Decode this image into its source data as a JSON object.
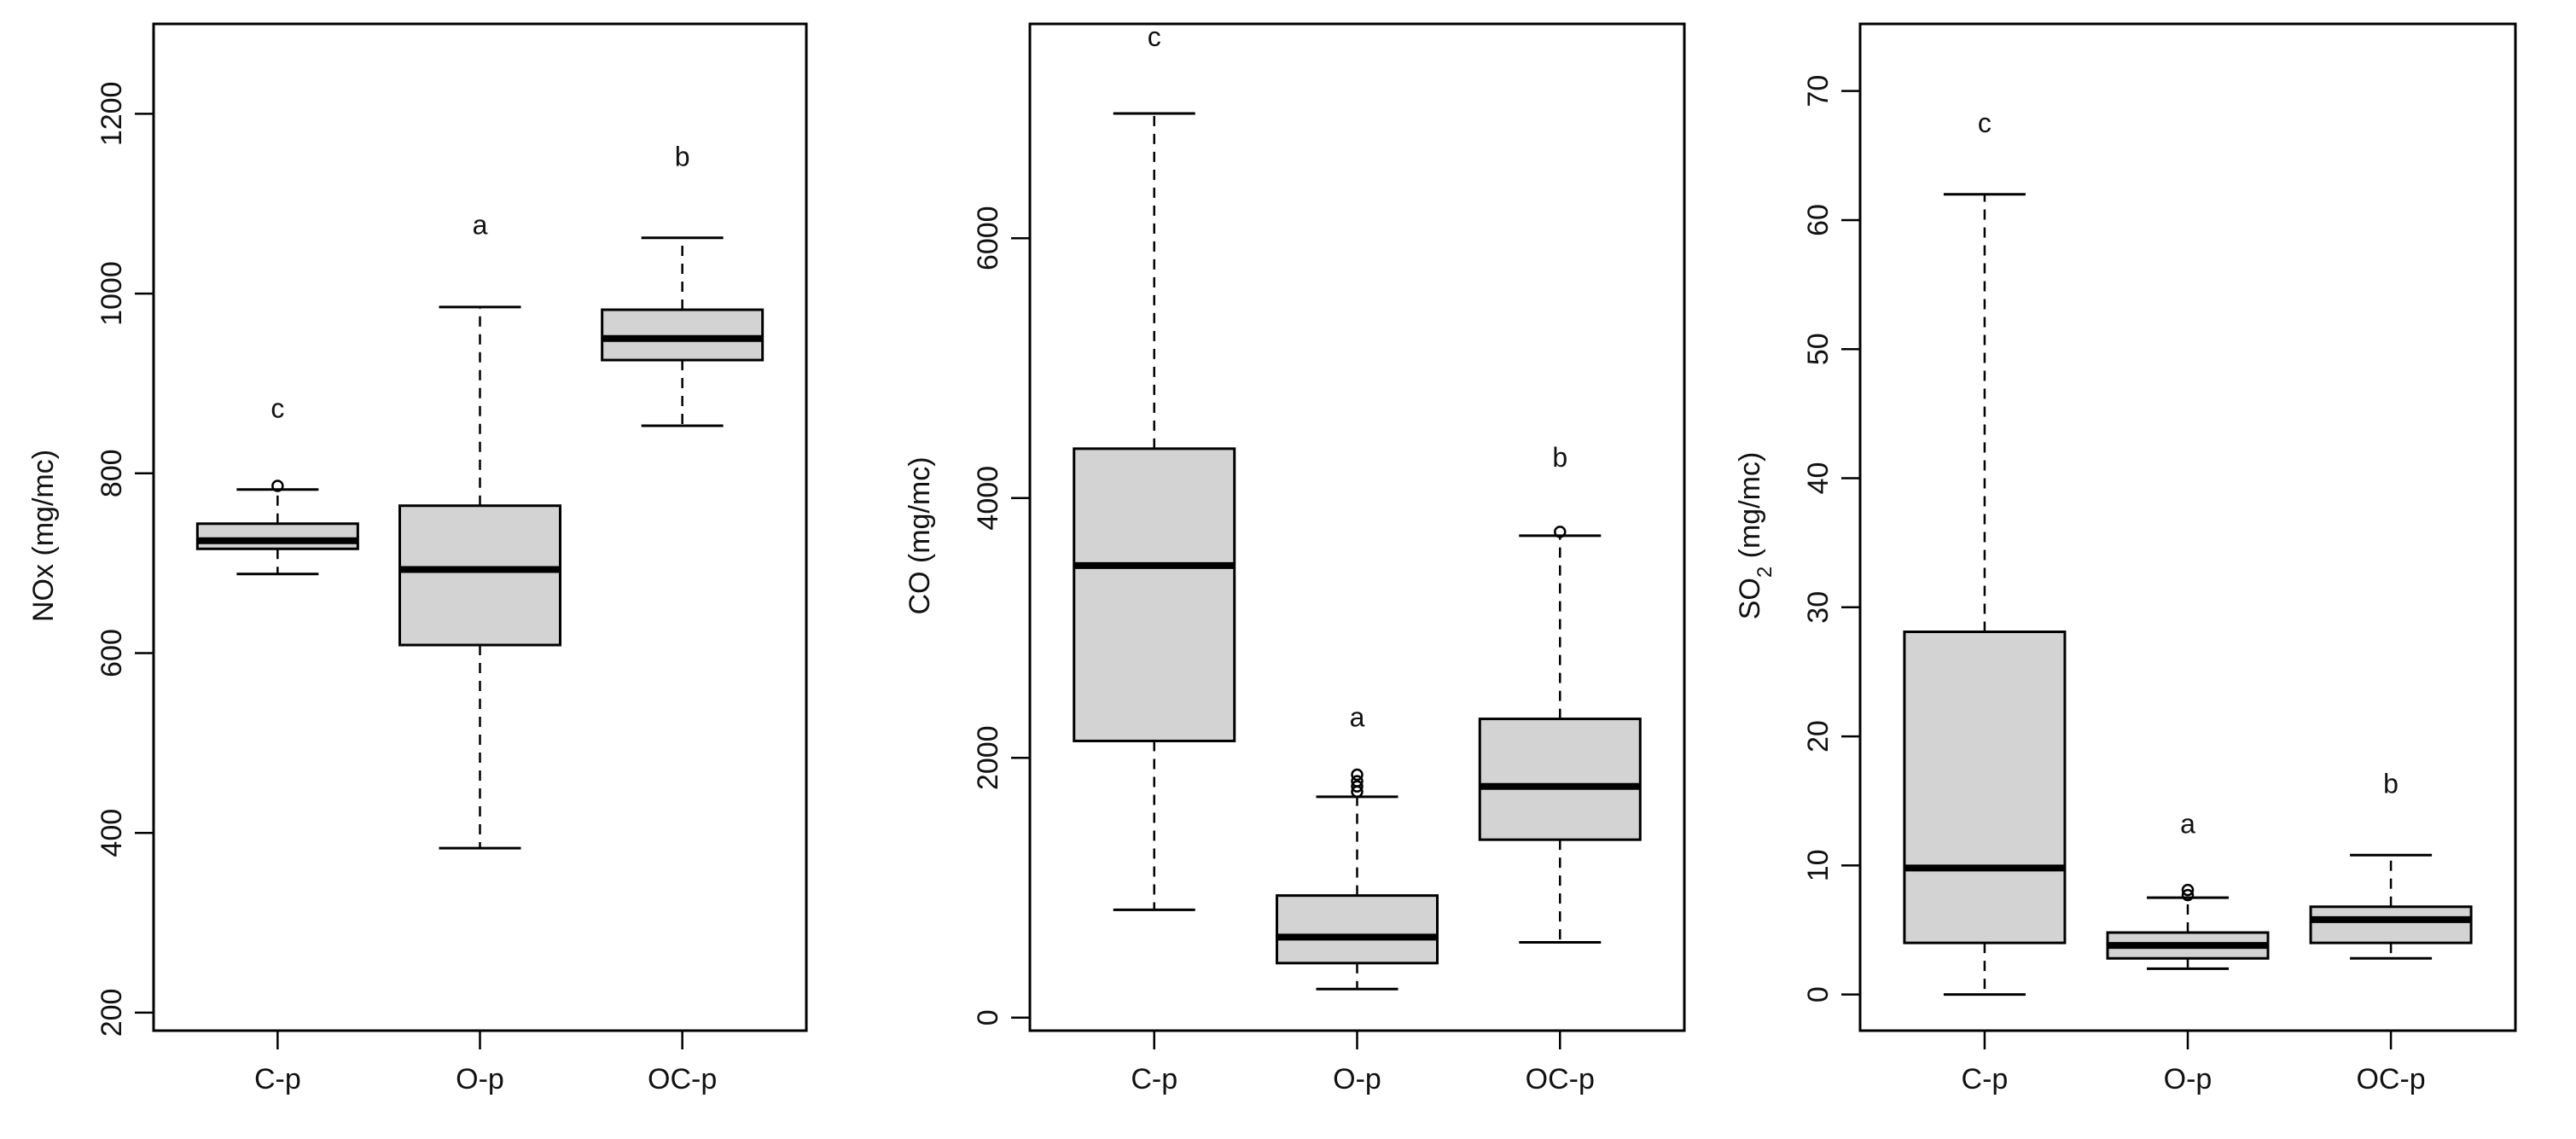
{
  "chart_data": [
    {
      "type": "boxplot",
      "title": "",
      "xlabel": "",
      "ylabel": "NOx (mg/mc)",
      "ylabel_parts": [
        {
          "text": "NOx (mg/mc)"
        }
      ],
      "categories": [
        "C-p",
        "O-p",
        "OC-p"
      ],
      "ylim": [
        180,
        1300
      ],
      "yticks": [
        200,
        400,
        600,
        800,
        1000,
        1200
      ],
      "boxes": [
        {
          "category": "C-p",
          "whisker_low": 688,
          "q1": 716,
          "median": 725,
          "q3": 744,
          "whisker_high": 782,
          "outliers": [
            786
          ],
          "letter": "c",
          "letter_y": 862
        },
        {
          "category": "O-p",
          "whisker_low": 383,
          "q1": 609,
          "median": 693,
          "q3": 764,
          "whisker_high": 985,
          "outliers": [],
          "letter": "a",
          "letter_y": 1066
        },
        {
          "category": "OC-p",
          "whisker_low": 853,
          "q1": 926,
          "median": 950,
          "q3": 982,
          "whisker_high": 1062,
          "outliers": [],
          "letter": "b",
          "letter_y": 1142
        }
      ]
    },
    {
      "type": "boxplot",
      "title": "",
      "xlabel": "",
      "ylabel": "CO (mg/mc)",
      "ylabel_parts": [
        {
          "text": "CO (mg/mc)"
        }
      ],
      "categories": [
        "C-p",
        "O-p",
        "OC-p"
      ],
      "ylim": [
        -100,
        7650
      ],
      "yticks": [
        0,
        2000,
        4000,
        6000
      ],
      "boxes": [
        {
          "category": "C-p",
          "whisker_low": 830,
          "q1": 2130,
          "median": 3480,
          "q3": 4380,
          "whisker_high": 6960,
          "outliers": [],
          "letter": "c",
          "letter_y": 7480
        },
        {
          "category": "O-p",
          "whisker_low": 220,
          "q1": 420,
          "median": 620,
          "q3": 940,
          "whisker_high": 1700,
          "outliers": [
            1740,
            1780,
            1820,
            1870
          ],
          "letter": "a",
          "letter_y": 2240
        },
        {
          "category": "OC-p",
          "whisker_low": 580,
          "q1": 1370,
          "median": 1780,
          "q3": 2300,
          "whisker_high": 3710,
          "outliers": [
            3740
          ],
          "letter": "b",
          "letter_y": 4240
        }
      ]
    },
    {
      "type": "boxplot",
      "title": "",
      "xlabel": "",
      "ylabel": "SO2 (mg/mc)",
      "ylabel_parts": [
        {
          "text": "SO"
        },
        {
          "text": "2",
          "sub": true
        },
        {
          "text": "  (mg/mc)"
        }
      ],
      "categories": [
        "C-p",
        "O-p",
        "OC-p"
      ],
      "ylim": [
        -2.8,
        75.2
      ],
      "yticks": [
        0,
        10,
        20,
        30,
        40,
        50,
        60,
        70
      ],
      "boxes": [
        {
          "category": "C-p",
          "whisker_low": 0,
          "q1": 4,
          "median": 9.8,
          "q3": 28.1,
          "whisker_high": 62,
          "outliers": [],
          "letter": "c",
          "letter_y": 66.8
        },
        {
          "category": "O-p",
          "whisker_low": 2,
          "q1": 2.8,
          "median": 3.8,
          "q3": 4.8,
          "whisker_high": 7.5,
          "outliers": [
            7.7,
            8.1
          ],
          "letter": "a",
          "letter_y": 12.5
        },
        {
          "category": "OC-p",
          "whisker_low": 2.8,
          "q1": 4,
          "median": 5.8,
          "q3": 6.8,
          "whisker_high": 10.8,
          "outliers": [],
          "letter": "b",
          "letter_y": 15.6
        }
      ]
    }
  ]
}
